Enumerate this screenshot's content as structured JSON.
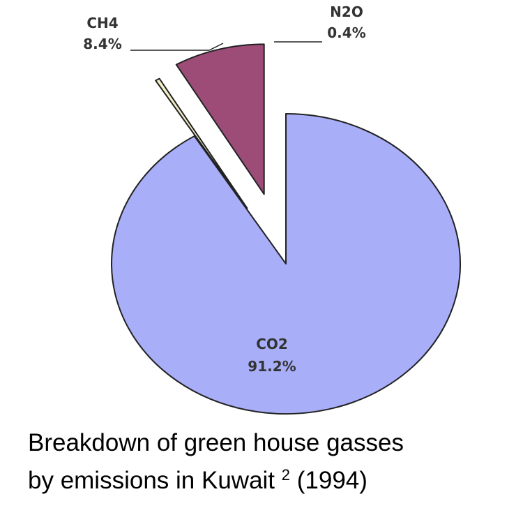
{
  "chart_data": {
    "type": "pie",
    "exploded": true,
    "slices": [
      {
        "label": "CO2",
        "value": 91.2,
        "value_label": "91.2%",
        "color": "#a8aef8"
      },
      {
        "label": "N2O",
        "value": 0.4,
        "value_label": "0.4%",
        "color": "#f5f0c8"
      },
      {
        "label": "CH4",
        "value": 8.4,
        "value_label": "8.4%",
        "color": "#9c4c77"
      }
    ],
    "outline_color": "#222222"
  },
  "caption": {
    "line1": "Breakdown of green house gasses",
    "line2_prefix": "by emissions in Kuwait ",
    "superscript": "2",
    "line2_suffix": " (1994)"
  }
}
